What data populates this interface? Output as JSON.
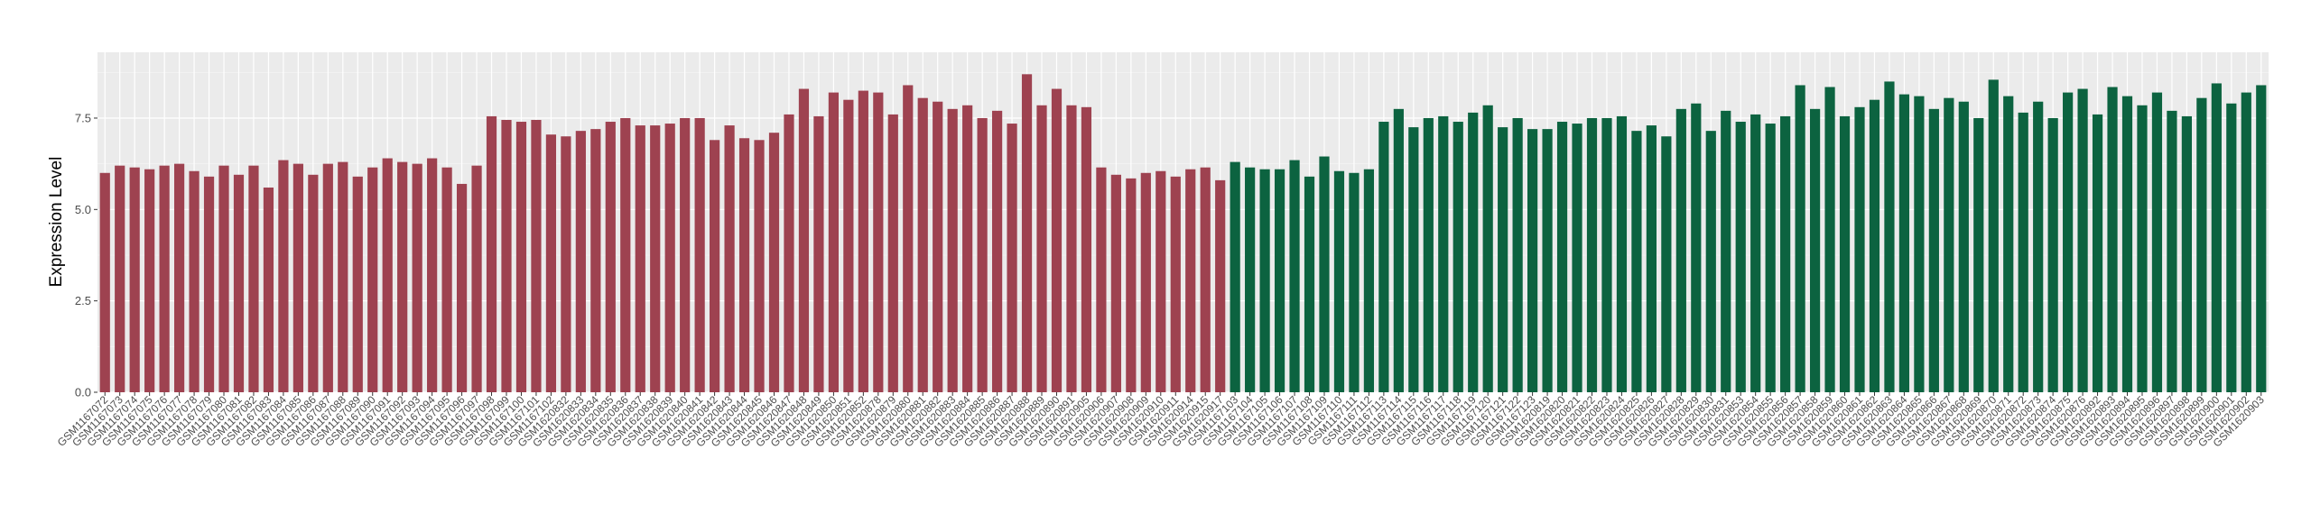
{
  "chart_data": {
    "type": "bar",
    "title": "",
    "xlabel": "",
    "ylabel": "Expression Level",
    "ylim": [
      0,
      9.3
    ],
    "yticks": [
      0,
      2.5,
      5,
      7.5
    ],
    "ytick_labels": [
      "0.0",
      "2.5",
      "5.0",
      "7.5"
    ],
    "grid": true,
    "legend": "none",
    "colors": {
      "panel": "#ebebeb",
      "group_a": "#9e4250",
      "group_b": "#0c6340"
    },
    "categories": [
      "GSM1167072",
      "GSM1167073",
      "GSM1167074",
      "GSM1167075",
      "GSM1167076",
      "GSM1167077",
      "GSM1167078",
      "GSM1167079",
      "GSM1167080",
      "GSM1167081",
      "GSM1167082",
      "GSM1167083",
      "GSM1167084",
      "GSM1167085",
      "GSM1167086",
      "GSM1167087",
      "GSM1167088",
      "GSM1167089",
      "GSM1167090",
      "GSM1167091",
      "GSM1167092",
      "GSM1167093",
      "GSM1167094",
      "GSM1167095",
      "GSM1167096",
      "GSM1167097",
      "GSM1167098",
      "GSM1167099",
      "GSM1167100",
      "GSM1167101",
      "GSM1167102",
      "GSM1620832",
      "GSM1620833",
      "GSM1620834",
      "GSM1620835",
      "GSM1620836",
      "GSM1620837",
      "GSM1620838",
      "GSM1620839",
      "GSM1620840",
      "GSM1620841",
      "GSM1620842",
      "GSM1620843",
      "GSM1620844",
      "GSM1620845",
      "GSM1620846",
      "GSM1620847",
      "GSM1620848",
      "GSM1620849",
      "GSM1620850",
      "GSM1620851",
      "GSM1620852",
      "GSM1620878",
      "GSM1620879",
      "GSM1620880",
      "GSM1620881",
      "GSM1620882",
      "GSM1620883",
      "GSM1620884",
      "GSM1620885",
      "GSM1620886",
      "GSM1620887",
      "GSM1620888",
      "GSM1620889",
      "GSM1620890",
      "GSM1620891",
      "GSM1620905",
      "GSM1620906",
      "GSM1620907",
      "GSM1620908",
      "GSM1620909",
      "GSM1620910",
      "GSM1620911",
      "GSM1620914",
      "GSM1620915",
      "GSM1620917",
      "GSM1167103",
      "GSM1167104",
      "GSM1167105",
      "GSM1167106",
      "GSM1167107",
      "GSM1167108",
      "GSM1167109",
      "GSM1167110",
      "GSM1167111",
      "GSM1167112",
      "GSM1167113",
      "GSM1167114",
      "GSM1167115",
      "GSM1167116",
      "GSM1167117",
      "GSM1167118",
      "GSM1167119",
      "GSM1167120",
      "GSM1167121",
      "GSM1167122",
      "GSM1167123",
      "GSM1620819",
      "GSM1620820",
      "GSM1620821",
      "GSM1620822",
      "GSM1620823",
      "GSM1620824",
      "GSM1620825",
      "GSM1620826",
      "GSM1620827",
      "GSM1620828",
      "GSM1620829",
      "GSM1620830",
      "GSM1620831",
      "GSM1620853",
      "GSM1620854",
      "GSM1620855",
      "GSM1620856",
      "GSM1620857",
      "GSM1620858",
      "GSM1620859",
      "GSM1620860",
      "GSM1620861",
      "GSM1620862",
      "GSM1620863",
      "GSM1620864",
      "GSM1620865",
      "GSM1620866",
      "GSM1620867",
      "GSM1620868",
      "GSM1620869",
      "GSM1620870",
      "GSM1620871",
      "GSM1620872",
      "GSM1620873",
      "GSM1620874",
      "GSM1620875",
      "GSM1620876",
      "GSM1620892",
      "GSM1620893",
      "GSM1620894",
      "GSM1620895",
      "GSM1620896",
      "GSM1620897",
      "GSM1620898",
      "GSM1620899",
      "GSM1620900",
      "GSM1620901",
      "GSM1620902",
      "GSM1620903"
    ],
    "values": [
      6.0,
      6.2,
      6.15,
      6.1,
      6.2,
      6.25,
      6.05,
      5.9,
      6.2,
      5.95,
      6.2,
      5.6,
      6.35,
      6.25,
      5.95,
      6.25,
      6.3,
      5.9,
      6.15,
      6.4,
      6.3,
      6.25,
      6.4,
      6.15,
      5.7,
      6.2,
      7.55,
      7.45,
      7.4,
      7.45,
      7.05,
      7.0,
      7.15,
      7.2,
      7.4,
      7.5,
      7.3,
      7.3,
      7.35,
      7.5,
      7.5,
      6.9,
      7.3,
      6.95,
      6.9,
      7.1,
      7.6,
      8.3,
      7.55,
      8.2,
      8.0,
      8.25,
      8.2,
      7.6,
      8.4,
      8.05,
      7.95,
      7.75,
      7.85,
      7.5,
      7.7,
      7.35,
      8.7,
      7.85,
      8.3,
      7.85,
      7.8,
      6.15,
      5.95,
      5.85,
      6.0,
      6.05,
      5.9,
      6.1,
      6.15,
      5.8,
      6.3,
      6.15,
      6.1,
      6.1,
      6.35,
      5.9,
      6.45,
      6.05,
      6.0,
      6.1,
      7.4,
      7.75,
      7.25,
      7.5,
      7.55,
      7.4,
      7.65,
      7.85,
      7.25,
      7.5,
      7.2,
      7.2,
      7.4,
      7.35,
      7.5,
      7.5,
      7.55,
      7.15,
      7.3,
      7.0,
      7.75,
      7.9,
      7.15,
      7.7,
      7.4,
      7.6,
      7.35,
      7.55,
      8.4,
      7.75,
      8.35,
      7.55,
      7.8,
      8.0,
      8.5,
      8.15,
      8.1,
      7.75,
      8.05,
      7.95,
      7.5,
      8.55,
      8.1,
      7.65,
      7.95,
      7.5,
      8.2,
      8.3,
      7.6,
      8.35,
      8.1,
      7.85,
      8.2,
      7.7,
      7.55,
      8.05,
      8.45,
      7.9,
      8.2,
      8.4
    ],
    "group_a_count": 76
  }
}
